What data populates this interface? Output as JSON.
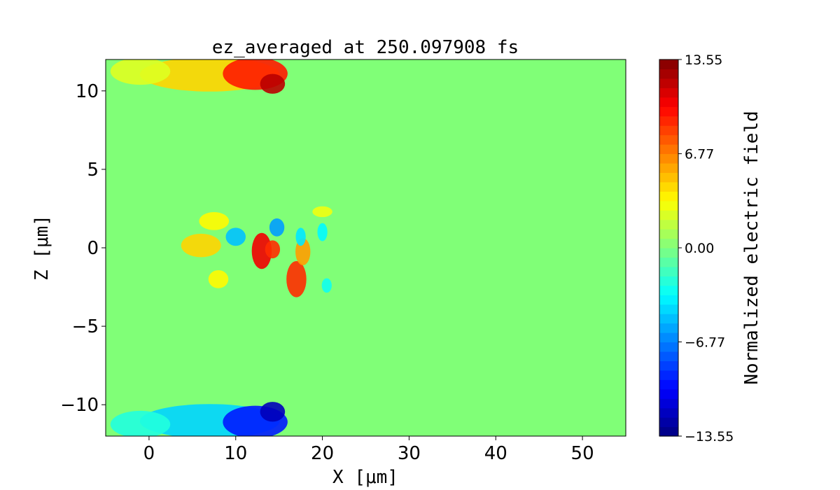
{
  "chart_data": {
    "type": "heatmap",
    "title": "ez_averaged at 250.097908 fs",
    "xlabel": "X [μm]",
    "ylabel": "Z [μm]",
    "xlim": [
      -5,
      55
    ],
    "ylim": [
      -12,
      12
    ],
    "x_ticks": [
      {
        "value": 0,
        "label": "0"
      },
      {
        "value": 10,
        "label": "10"
      },
      {
        "value": 20,
        "label": "20"
      },
      {
        "value": 30,
        "label": "30"
      },
      {
        "value": 40,
        "label": "40"
      },
      {
        "value": 50,
        "label": "50"
      }
    ],
    "y_ticks": [
      {
        "value": 10,
        "label": "10"
      },
      {
        "value": 5,
        "label": "5"
      },
      {
        "value": 0,
        "label": "0"
      },
      {
        "value": -5,
        "label": "−5"
      },
      {
        "value": -10,
        "label": "−10"
      }
    ],
    "colormap": "jet",
    "colorbar": {
      "label": "Normalized electric field",
      "range": [
        -13.55,
        13.55
      ],
      "ticks": [
        {
          "value": 13.55,
          "label": "13.55"
        },
        {
          "value": 6.77,
          "label": "6.77"
        },
        {
          "value": 0.0,
          "label": "0.00"
        },
        {
          "value": -6.77,
          "label": "−6.77"
        },
        {
          "value": -13.55,
          "label": "−13.55"
        }
      ]
    },
    "regions": [
      {
        "x": [
          0,
          14
        ],
        "z": [
          10.1,
          12
        ],
        "value": 4.5
      },
      {
        "x": [
          9,
          15.5
        ],
        "z": [
          10.2,
          12
        ],
        "value": 9.5
      },
      {
        "x": [
          13,
          15.5
        ],
        "z": [
          9.9,
          11
        ],
        "value": 12
      },
      {
        "x": [
          -4,
          2
        ],
        "z": [
          10.5,
          12
        ],
        "value": 2.5
      },
      {
        "x": [
          0,
          14
        ],
        "z": [
          -12,
          -10.1
        ],
        "value": -4.5
      },
      {
        "x": [
          9,
          15.5
        ],
        "z": [
          -12,
          -10.2
        ],
        "value": -9.5
      },
      {
        "x": [
          13,
          15.5
        ],
        "z": [
          -11,
          -9.9
        ],
        "value": -12
      },
      {
        "x": [
          -4,
          2
        ],
        "z": [
          -12,
          -10.5
        ],
        "value": -2.5
      },
      {
        "x": [
          4,
          8
        ],
        "z": [
          -0.5,
          0.8
        ],
        "value": 4.5
      },
      {
        "x": [
          6,
          9
        ],
        "z": [
          1.2,
          2.2
        ],
        "value": 3.5
      },
      {
        "x": [
          12,
          14
        ],
        "z": [
          -1.2,
          0.8
        ],
        "value": 10.5
      },
      {
        "x": [
          13.5,
          15
        ],
        "z": [
          -0.6,
          0.4
        ],
        "value": 9
      },
      {
        "x": [
          16,
          18
        ],
        "z": [
          -3,
          -1
        ],
        "value": 9
      },
      {
        "x": [
          17,
          18.5
        ],
        "z": [
          -1,
          0.5
        ],
        "value": 6
      },
      {
        "x": [
          7,
          9
        ],
        "z": [
          -2.5,
          -1.5
        ],
        "value": 3.5
      },
      {
        "x": [
          9,
          11
        ],
        "z": [
          0.2,
          1.2
        ],
        "value": -5
      },
      {
        "x": [
          14,
          15.5
        ],
        "z": [
          0.8,
          1.8
        ],
        "value": -6
      },
      {
        "x": [
          17,
          18
        ],
        "z": [
          0.2,
          1.2
        ],
        "value": -4
      },
      {
        "x": [
          19.5,
          20.5
        ],
        "z": [
          0.5,
          1.5
        ],
        "value": -3.5
      },
      {
        "x": [
          20,
          21
        ],
        "z": [
          -2.8,
          -2
        ],
        "value": -3
      },
      {
        "x": [
          19,
          21
        ],
        "z": [
          2,
          2.6
        ],
        "value": 3
      }
    ]
  }
}
